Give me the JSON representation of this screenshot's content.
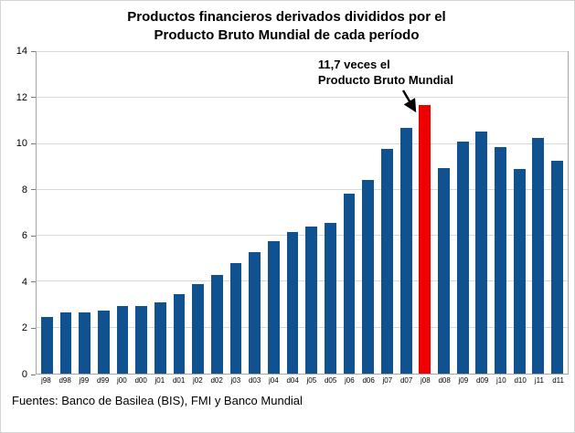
{
  "title": {
    "line1": "Productos financieros derivados divididos por el",
    "line2": "Producto Bruto Mundial de cada período"
  },
  "annotation": {
    "line1": "11,7 veces el",
    "line2": "Producto Bruto Mundial"
  },
  "source": "Fuentes: Banco de Basilea (BIS), FMI y Banco Mundial",
  "chart_data": {
    "type": "bar",
    "title": "Productos financieros derivados divididos por el Producto Bruto Mundial de cada período",
    "categories": [
      "j98",
      "d98",
      "j99",
      "d99",
      "j00",
      "d00",
      "j01",
      "d01",
      "j02",
      "d02",
      "j03",
      "d03",
      "j04",
      "d04",
      "j05",
      "d05",
      "j06",
      "d06",
      "j07",
      "d07",
      "j08",
      "d08",
      "j09",
      "d09",
      "j10",
      "d10",
      "j11",
      "d11"
    ],
    "values": [
      2.45,
      2.65,
      2.65,
      2.75,
      2.95,
      2.95,
      3.1,
      3.45,
      3.9,
      4.3,
      4.8,
      5.3,
      5.75,
      6.15,
      6.4,
      6.55,
      7.85,
      8.45,
      9.8,
      10.7,
      11.7,
      8.95,
      10.1,
      10.55,
      9.85,
      8.9,
      10.25,
      9.25
    ],
    "highlight": {
      "category": "j08",
      "value": 11.7,
      "color": "#ee0000"
    },
    "bar_color": "#10518f",
    "ylim": [
      0,
      14
    ],
    "yticks": [
      0,
      2,
      4,
      6,
      8,
      10,
      12,
      14
    ],
    "grid": true,
    "legend": "none",
    "annotation": "11,7 veces el Producto Bruto Mundial",
    "xlabel": "",
    "ylabel": "",
    "source": "Fuentes: Banco de Basilea (BIS), FMI y Banco Mundial"
  }
}
